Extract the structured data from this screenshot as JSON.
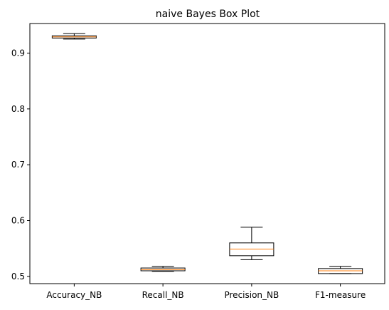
{
  "chart_data": {
    "type": "box",
    "title": "naive Bayes Box Plot",
    "xlabel": "",
    "ylabel": "",
    "ylim": [
      0.487,
      0.953
    ],
    "yticks": [
      0.5,
      0.6,
      0.7,
      0.8,
      0.9
    ],
    "ytick_labels": [
      "0.5",
      "0.6",
      "0.7",
      "0.8",
      "0.9"
    ],
    "grid": false,
    "categories": [
      "Accuracy_NB",
      "Recall_NB",
      "Precision_NB",
      "F1-measure"
    ],
    "boxes": [
      {
        "name": "Accuracy_NB",
        "whisker_low": 0.925,
        "q1": 0.927,
        "median": 0.929,
        "q3": 0.931,
        "whisker_high": 0.935
      },
      {
        "name": "Recall_NB",
        "whisker_low": 0.509,
        "q1": 0.51,
        "median": 0.512,
        "q3": 0.515,
        "whisker_high": 0.518
      },
      {
        "name": "Precision_NB",
        "whisker_low": 0.53,
        "q1": 0.537,
        "median": 0.549,
        "q3": 0.56,
        "whisker_high": 0.588
      },
      {
        "name": "F1-measure",
        "whisker_low": 0.505,
        "q1": 0.505,
        "median": 0.51,
        "q3": 0.514,
        "whisker_high": 0.518
      }
    ],
    "colors": {
      "box": "#000000",
      "median": "#ff7f0e",
      "axes": "#000000"
    }
  }
}
